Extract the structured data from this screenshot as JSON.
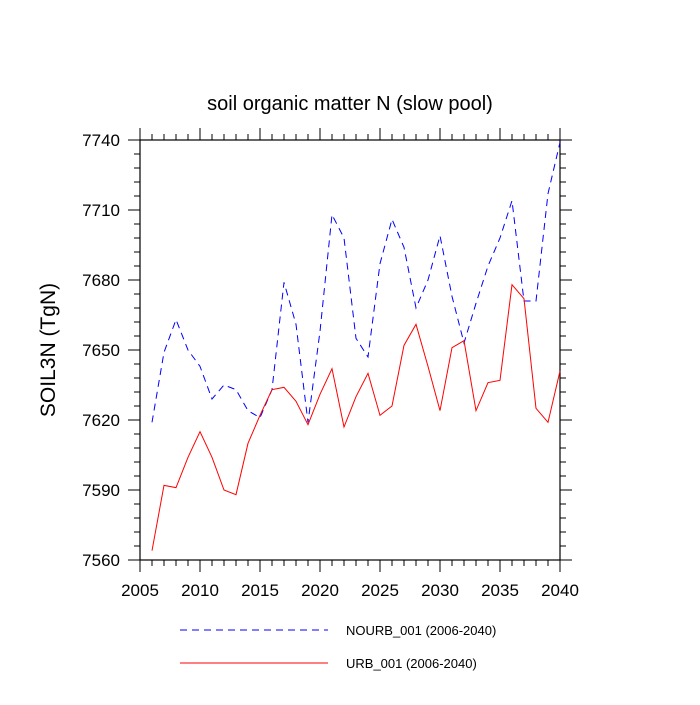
{
  "chart_data": {
    "type": "line",
    "title": "soil organic matter N (slow pool)",
    "xlabel": "",
    "ylabel": "SOIL3N  (TgN)",
    "xlim": [
      2005,
      2040
    ],
    "ylim": [
      7560,
      7740
    ],
    "xticks": [
      2005,
      2010,
      2015,
      2020,
      2025,
      2030,
      2035,
      2040
    ],
    "yticks": [
      7560,
      7590,
      7620,
      7650,
      7680,
      7710,
      7740
    ],
    "x": [
      2006,
      2007,
      2008,
      2009,
      2010,
      2011,
      2012,
      2013,
      2014,
      2015,
      2016,
      2017,
      2018,
      2019,
      2020,
      2021,
      2022,
      2023,
      2024,
      2025,
      2026,
      2027,
      2028,
      2029,
      2030,
      2031,
      2032,
      2033,
      2034,
      2035,
      2036,
      2037,
      2038,
      2039,
      2040
    ],
    "series": [
      {
        "name": "NOURB_001 (2006-2040)",
        "color": "#0000ff",
        "dash": "dashed",
        "values": [
          7619,
          7649,
          7663,
          7650,
          7643,
          7629,
          7635,
          7633,
          7624,
          7621,
          7633,
          7679,
          7661,
          7619,
          7658,
          7708,
          7698,
          7655,
          7647,
          7687,
          7706,
          7694,
          7668,
          7680,
          7699,
          7673,
          7653,
          7670,
          7686,
          7698,
          7714,
          7671,
          7671,
          7717,
          7739
        ]
      },
      {
        "name": "URB_001 (2006-2040)",
        "color": "#ff0000",
        "dash": "solid",
        "values": [
          7564,
          7592,
          7591,
          7604,
          7615,
          7604,
          7590,
          7588,
          7610,
          7622,
          7633,
          7634,
          7628,
          7618,
          7631,
          7642,
          7617,
          7630,
          7640,
          7622,
          7626,
          7652,
          7661,
          7643,
          7624,
          7651,
          7654,
          7624,
          7636,
          7637,
          7678,
          7672,
          7625,
          7619,
          7641
        ]
      }
    ]
  }
}
